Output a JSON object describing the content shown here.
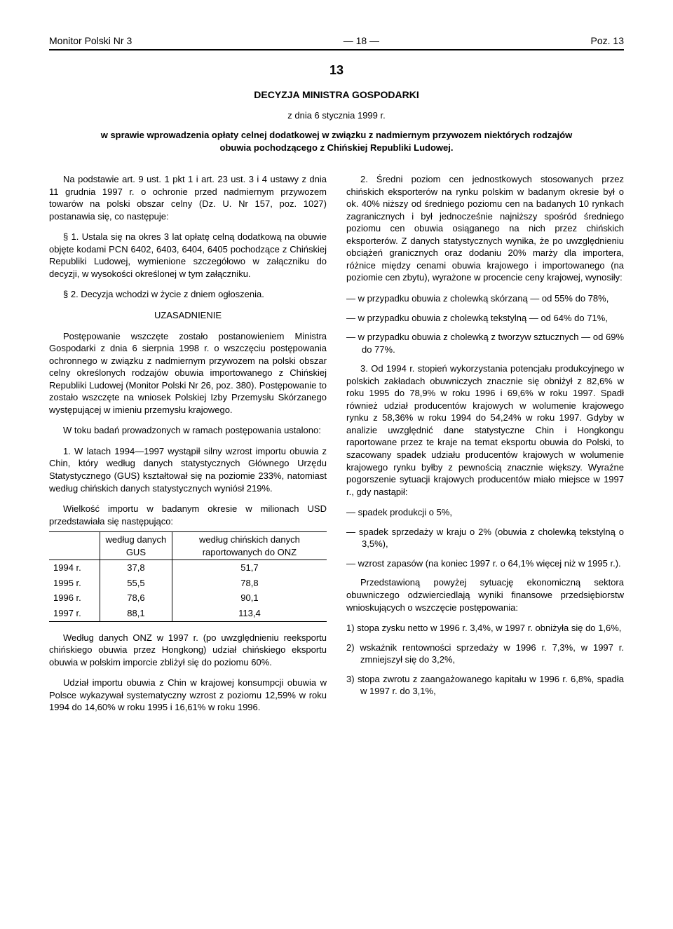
{
  "header": {
    "left": "Monitor Polski Nr 3",
    "center": "— 18 —",
    "right": "Poz. 13"
  },
  "doc": {
    "number": "13",
    "title": "DECYZJA MINISTRA GOSPODARKI",
    "date": "z dnia 6 stycznia 1999 r.",
    "subject": "w sprawie wprowadzenia opłaty celnej dodatkowej w związku z nadmiernym przywozem niektórych rodzajów obuwia pochodzącego z Chińskiej Republiki Ludowej."
  },
  "left_col": {
    "p1": "Na podstawie art. 9 ust. 1 pkt 1 i art. 23 ust. 3 i 4 ustawy z dnia 11 grudnia 1997 r. o ochronie przed nadmiernym przywozem towarów na polski obszar celny (Dz. U. Nr 157, poz. 1027) postanawia się, co następuje:",
    "p2": "§ 1. Ustala się na okres 3 lat opłatę celną dodatkową na obuwie objęte kodami PCN 6402, 6403, 6404, 6405 pochodzące z Chińskiej Republiki Ludowej, wymienione szczegółowo w załączniku do decyzji, w wysokości określonej w tym załączniku.",
    "p3": "§ 2. Decyzja wchodzi w życie z dniem ogłoszenia.",
    "uzasad_heading": "UZASADNIENIE",
    "p4": "Postępowanie wszczęte zostało postanowieniem Ministra Gospodarki z dnia 6 sierpnia 1998 r. o wszczęciu postępowania ochronnego w związku z nadmiernym przywozem na polski obszar celny określonych rodzajów obuwia importowanego z Chińskiej Republiki Ludowej (Monitor Polski Nr 26, poz. 380). Postępowanie to zostało wszczęte na wniosek Polskiej Izby Przemysłu Skórzanego występującej w imieniu przemysłu krajowego.",
    "p5": "W toku badań prowadzonych w ramach postępowania ustalono:",
    "p6": "1. W latach 1994—1997 wystąpił silny wzrost importu obuwia z Chin, który według danych statystycznych Głównego Urzędu Statystycznego (GUS) kształtował się na poziomie 233%, natomiast według chińskich danych statystycznych wyniósł 219%.",
    "table_caption": "Wielkość importu w badanym okresie w milionach USD przedstawiała się następująco:",
    "table": {
      "col_year": "",
      "col_gus": "według danych GUS",
      "col_onz": "według chińskich danych raportowanych do ONZ",
      "rows": [
        {
          "year": "1994 r.",
          "gus": "37,8",
          "onz": "51,7"
        },
        {
          "year": "1995 r.",
          "gus": "55,5",
          "onz": "78,8"
        },
        {
          "year": "1996 r.",
          "gus": "78,6",
          "onz": "90,1"
        },
        {
          "year": "1997 r.",
          "gus": "88,1",
          "onz": "113,4"
        }
      ]
    },
    "p7": "Według danych ONZ w 1997 r. (po uwzględnieniu reeksportu chińskiego obuwia przez Hongkong) udział chińskiego eksportu obuwia w polskim imporcie zbliżył się do poziomu 60%.",
    "p8": "Udział importu obuwia z Chin w krajowej konsumpcji obuwia w Polsce wykazywał systematyczny wzrost z poziomu 12,59% w roku 1994 do 14,60% w roku 1995 i 16,61% w roku 1996."
  },
  "right_col": {
    "p1": "2. Średni poziom cen jednostkowych stosowanych przez chińskich eksporterów na rynku polskim w badanym okresie był o ok. 40% niższy od średniego poziomu cen na badanych 10 rynkach zagranicznych i był jednocześnie najniższy spośród średniego poziomu cen obuwia osiąganego na nich przez chińskich eksporterów. Z danych statystycznych wynika, że po uwzględnieniu obciążeń granicznych oraz dodaniu 20% marży dla importera, różnice między cenami obuwia krajowego i importowanego (na poziomie cen zbytu), wyrażone w procencie ceny krajowej, wynosiły:",
    "d1": "— w przypadku obuwia z cholewką skórzaną — od 55% do 78%,",
    "d2": "— w przypadku obuwia z cholewką tekstylną — od 64% do 71%,",
    "d3": "— w przypadku obuwia z cholewką z tworzyw sztucznych — od 69% do 77%.",
    "p2": "3. Od 1994 r. stopień wykorzystania potencjału produkcyjnego w polskich zakładach obuwniczych znacznie się obniżył z 82,6% w roku 1995 do 78,9% w roku 1996 i 69,6% w roku 1997. Spadł również udział producentów krajowych w wolumenie krajowego rynku z 58,36% w roku 1994 do 54,24% w roku 1997. Gdyby w analizie uwzględnić dane statystyczne Chin i Hongkongu raportowane przez te kraje na temat eksportu obuwia do Polski, to szacowany spadek udziału producentów krajowych w wolumenie krajowego rynku byłby z pewnością znacznie większy. Wyraźne pogorszenie sytuacji krajowych producentów miało miejsce w 1997 r., gdy nastąpił:",
    "d4": "— spadek produkcji o 5%,",
    "d5": "— spadek sprzedaży w kraju o 2% (obuwia z cholewką tekstylną o 3,5%),",
    "d6": "— wzrost zapasów (na koniec 1997 r. o 64,1% więcej niż w 1995 r.).",
    "p3": "Przedstawioną powyżej sytuację ekonomiczną sektora obuwniczego odzwierciedlają wyniki finansowe przedsiębiorstw wnioskujących o wszczęcie postępowania:",
    "n1": "1) stopa zysku netto w 1996 r. 3,4%, w 1997 r. obniżyła się do 1,6%,",
    "n2": "2) wskaźnik rentowności sprzedaży w 1996 r. 7,3%, w 1997 r. zmniejszył się do 3,2%,",
    "n3": "3) stopa zwrotu z zaangażowanego kapitału w 1996 r. 6,8%, spadła w 1997 r. do 3,1%,"
  }
}
